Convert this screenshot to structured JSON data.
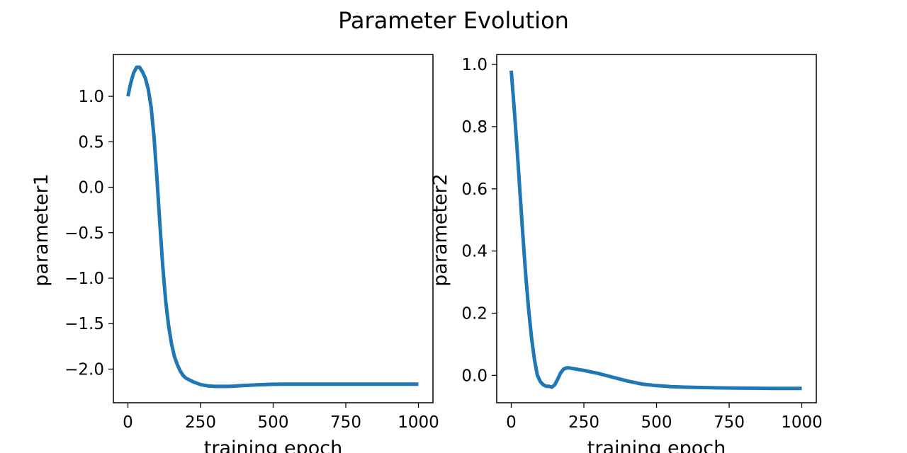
{
  "figure": {
    "title": "Parameter Evolution"
  },
  "chart_data": [
    {
      "type": "line",
      "xlabel": "training epoch",
      "ylabel": "parameter1",
      "xlim": [
        -50,
        1050
      ],
      "ylim": [
        -2.37,
        1.46
      ],
      "xticks": [
        {
          "value": 0,
          "label": "0"
        },
        {
          "value": 250,
          "label": "250"
        },
        {
          "value": 500,
          "label": "500"
        },
        {
          "value": 750,
          "label": "750"
        },
        {
          "value": 1000,
          "label": "1000"
        }
      ],
      "yticks": [
        {
          "value": 1.0,
          "label": "1.0"
        },
        {
          "value": 0.5,
          "label": "0.5"
        },
        {
          "value": 0.0,
          "label": "0.0"
        },
        {
          "value": -0.5,
          "label": "−0.5"
        },
        {
          "value": -1.0,
          "label": "−1.0"
        },
        {
          "value": -1.5,
          "label": "−1.5"
        },
        {
          "value": -2.0,
          "label": "−2.0"
        }
      ],
      "grid": false,
      "series": [
        {
          "color": "#1f77b4",
          "x": [
            0,
            10,
            20,
            30,
            40,
            50,
            60,
            70,
            80,
            90,
            100,
            110,
            120,
            130,
            140,
            150,
            160,
            170,
            180,
            190,
            200,
            225,
            250,
            275,
            300,
            325,
            350,
            375,
            400,
            450,
            500,
            550,
            600,
            700,
            800,
            900,
            1000
          ],
          "y": [
            1.0,
            1.15,
            1.26,
            1.32,
            1.32,
            1.27,
            1.2,
            1.08,
            0.88,
            0.55,
            0.1,
            -0.4,
            -0.87,
            -1.25,
            -1.52,
            -1.72,
            -1.86,
            -1.95,
            -2.02,
            -2.07,
            -2.1,
            -2.14,
            -2.17,
            -2.185,
            -2.19,
            -2.19,
            -2.19,
            -2.185,
            -2.18,
            -2.172,
            -2.167,
            -2.165,
            -2.165,
            -2.165,
            -2.165,
            -2.165,
            -2.165
          ]
        }
      ]
    },
    {
      "type": "line",
      "xlabel": "training epoch",
      "ylabel": "parameter2",
      "xlim": [
        -50,
        1050
      ],
      "ylim": [
        -0.088,
        1.032
      ],
      "xticks": [
        {
          "value": 0,
          "label": "0"
        },
        {
          "value": 250,
          "label": "250"
        },
        {
          "value": 500,
          "label": "500"
        },
        {
          "value": 750,
          "label": "750"
        },
        {
          "value": 1000,
          "label": "1000"
        }
      ],
      "yticks": [
        {
          "value": 1.0,
          "label": "1.0"
        },
        {
          "value": 0.8,
          "label": "0.8"
        },
        {
          "value": 0.6,
          "label": "0.6"
        },
        {
          "value": 0.4,
          "label": "0.4"
        },
        {
          "value": 0.2,
          "label": "0.2"
        },
        {
          "value": 0.0,
          "label": "0.0"
        }
      ],
      "grid": false,
      "series": [
        {
          "color": "#1f77b4",
          "x": [
            0,
            10,
            20,
            30,
            40,
            50,
            60,
            70,
            80,
            90,
            100,
            110,
            120,
            130,
            140,
            150,
            160,
            170,
            180,
            190,
            200,
            225,
            250,
            300,
            350,
            400,
            450,
            500,
            550,
            600,
            700,
            800,
            900,
            1000
          ],
          "y": [
            0.98,
            0.86,
            0.73,
            0.59,
            0.45,
            0.32,
            0.21,
            0.12,
            0.05,
            0.0,
            -0.02,
            -0.03,
            -0.035,
            -0.035,
            -0.038,
            -0.03,
            -0.012,
            0.008,
            0.02,
            0.024,
            0.024,
            0.02,
            0.016,
            0.006,
            -0.006,
            -0.018,
            -0.028,
            -0.033,
            -0.036,
            -0.038,
            -0.04,
            -0.041,
            -0.042,
            -0.042
          ]
        }
      ]
    }
  ]
}
